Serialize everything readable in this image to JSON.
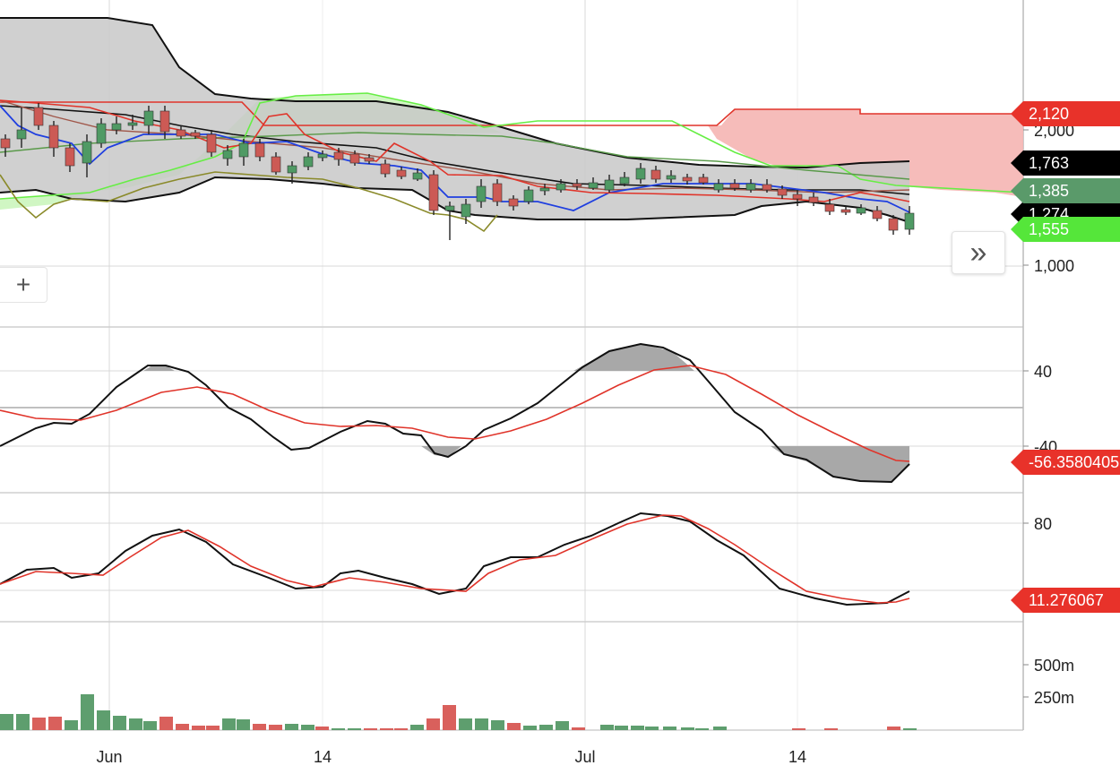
{
  "chart_data": {
    "type": "candlestick",
    "x_tick_labels": [
      "Jun",
      "14",
      "Jul",
      "14"
    ],
    "price_axis": {
      "ticks": [
        "2,000",
        "1,000"
      ],
      "scale": "log"
    },
    "oscillator1_axis": {
      "ticks": [
        "40",
        "-40"
      ]
    },
    "oscillator2_axis": {
      "ticks": [
        "80"
      ]
    },
    "volume_axis": {
      "ticks": [
        "500m",
        "250m"
      ]
    },
    "price_badges": [
      {
        "label": "2,120",
        "color": "#e8322a"
      },
      {
        "label": "1,763",
        "color": "#000000"
      },
      {
        "label": "1,555",
        "color": "#55e63a"
      },
      {
        "label": "1,385",
        "color": "#5a9a6a"
      },
      {
        "label": "1,274",
        "color": "#000000"
      }
    ],
    "oscillator1_badge": {
      "label": "-56.3580405",
      "color": "#e8322a"
    },
    "oscillator2_badge": {
      "label": "11.276067",
      "color": "#e8322a"
    },
    "colors": {
      "up": "#4f9a64",
      "down": "#cc5a55",
      "cloud_bear": "#f5b5b3",
      "cloud_bull": "#c8f5b8",
      "bollinger": "#c8c8c8",
      "sma_blue": "#1f3fe0",
      "sma_red": "#e0342a"
    }
  },
  "controls": {
    "scroll_label": "»",
    "add_label": "+"
  }
}
